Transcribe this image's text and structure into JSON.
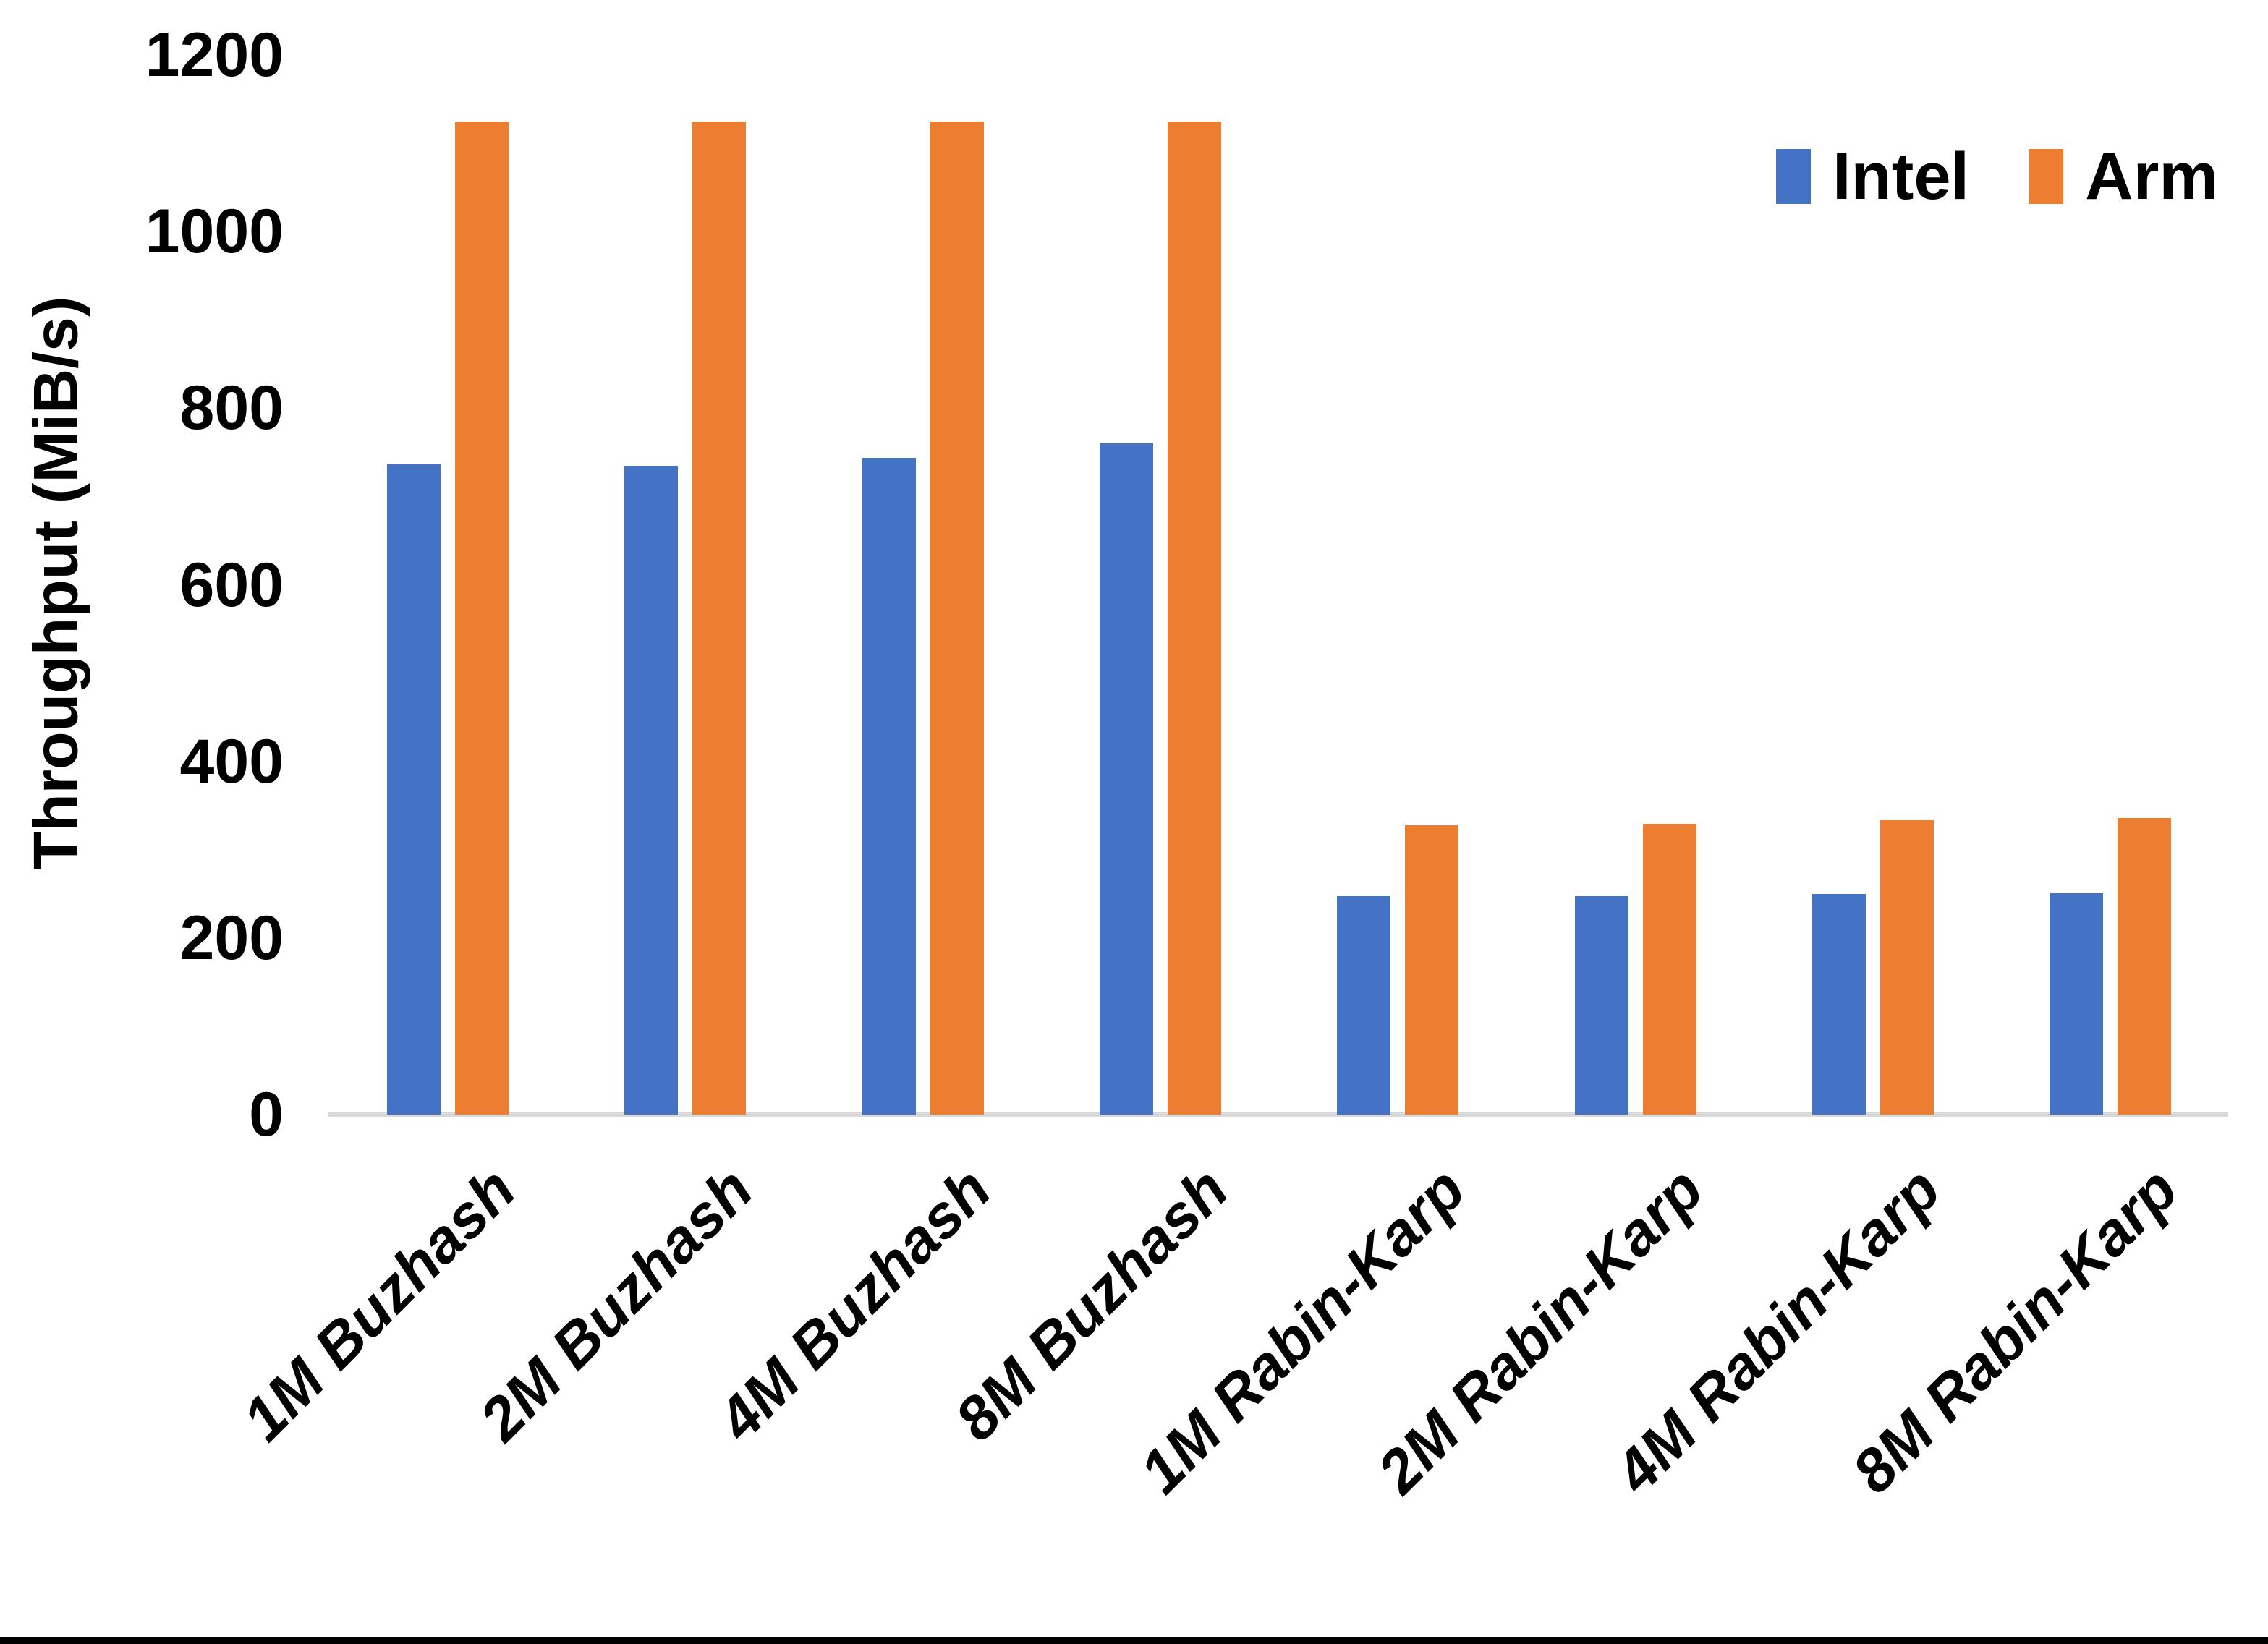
{
  "chart_data": {
    "type": "bar",
    "title": "",
    "xlabel": "",
    "ylabel": "Throughput (MiB/s)",
    "categories": [
      "1M Buzhash",
      "2M Buzhash",
      "4M Buzhash",
      "8M Buzhash",
      "1M Rabin-Karp",
      "2M Rabin-Karp",
      "4M Rabin-Karp",
      "8M Rabin-Karp"
    ],
    "series": [
      {
        "name": "Intel",
        "color": "#4472C4",
        "values": [
          736,
          735,
          744,
          760,
          247,
          247,
          250,
          251
        ]
      },
      {
        "name": "Arm",
        "color": "#ED7D31",
        "values": [
          1125,
          1125,
          1125,
          1125,
          328,
          329,
          333,
          336
        ]
      }
    ],
    "ylim": [
      0,
      1200
    ],
    "ytick_step": 200,
    "yticks": [
      "0",
      "200",
      "400",
      "600",
      "800",
      "1000",
      "1200"
    ],
    "grid": false,
    "legend_position": "top-right",
    "axis_line_color": "#d9d9d9",
    "background_color": "#ffffff"
  }
}
